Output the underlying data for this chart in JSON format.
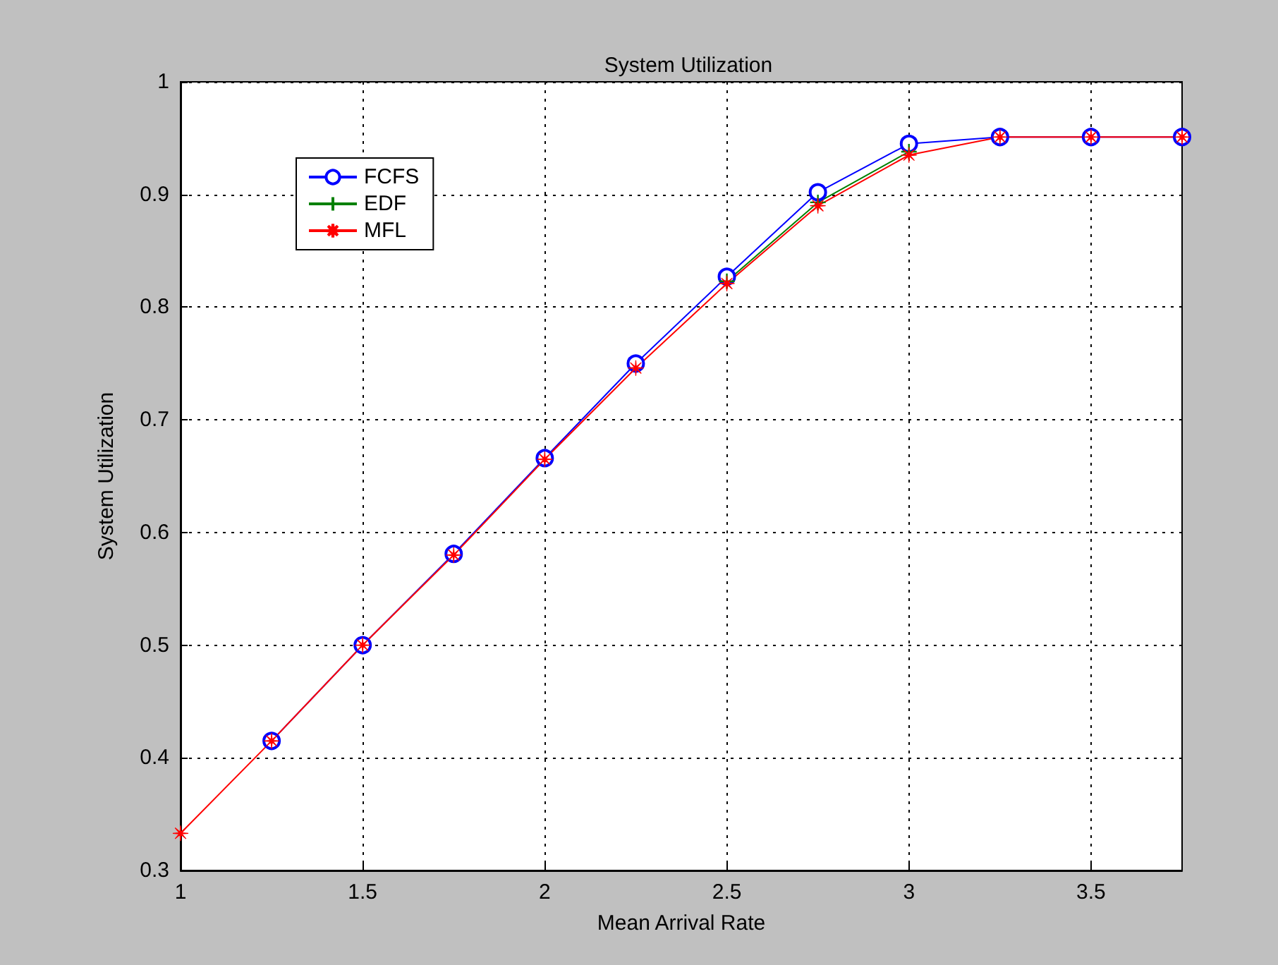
{
  "chart_data": {
    "type": "line",
    "title": "System Utilization",
    "xlabel": "Mean Arrival Rate",
    "ylabel": "System Utilization",
    "x": [
      1,
      1.25,
      1.5,
      1.75,
      2,
      2.25,
      2.5,
      2.75,
      3,
      3.25,
      3.5,
      3.75
    ],
    "series": [
      {
        "name": "FCFS",
        "color": "#0000ff",
        "marker": "circle",
        "values": [
          null,
          0.415,
          0.5,
          0.581,
          0.666,
          0.75,
          0.827,
          0.902,
          0.945,
          0.951,
          0.951,
          0.951
        ]
      },
      {
        "name": "EDF",
        "color": "#008000",
        "marker": "cross",
        "values": [
          null,
          null,
          null,
          null,
          null,
          null,
          0.823,
          0.893,
          0.938,
          null,
          null,
          null
        ]
      },
      {
        "name": "MFL",
        "color": "#ff0000",
        "marker": "star",
        "values": [
          0.333,
          0.415,
          0.5,
          0.58,
          0.665,
          0.746,
          0.821,
          0.89,
          0.935,
          0.951,
          0.951,
          0.951
        ]
      }
    ],
    "xlim": [
      1,
      3.75
    ],
    "xticks": [
      1,
      1.5,
      2,
      2.5,
      3,
      3.5
    ],
    "ylim": [
      0.3,
      1
    ],
    "yticks": [
      0.3,
      0.4,
      0.5,
      0.6,
      0.7,
      0.8,
      0.9,
      1
    ],
    "grid": true,
    "legend": "top left",
    "line_style": "solid"
  }
}
